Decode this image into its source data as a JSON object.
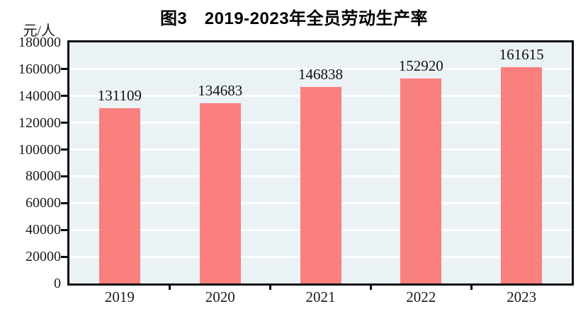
{
  "title": "图3　2019-2023年全员劳动生产率",
  "y_axis_unit": "元/人",
  "chart_data": {
    "type": "bar",
    "title": "图3　2019-2023年全员劳动生产率",
    "categories": [
      "2019",
      "2020",
      "2021",
      "2022",
      "2023"
    ],
    "values": [
      131109,
      134683,
      146838,
      152920,
      161615
    ],
    "bar_labels": [
      "131109",
      "134683",
      "146838",
      "152920",
      "161615"
    ],
    "xlabel": "",
    "ylabel": "元/人",
    "ylim": [
      0,
      180000
    ],
    "ytick_step": 20000,
    "ytick_labels": [
      "0",
      "20000",
      "40000",
      "60000",
      "80000",
      "100000",
      "120000",
      "140000",
      "160000",
      "180000"
    ],
    "grid": "horizontal",
    "legend": "none",
    "colors": {
      "bar": "#FA7F7F",
      "plot_background": "#EAF2F6",
      "gridline": "#FFFFFF",
      "frame": "#0A0A0A",
      "text": "#1A1A1A"
    }
  }
}
